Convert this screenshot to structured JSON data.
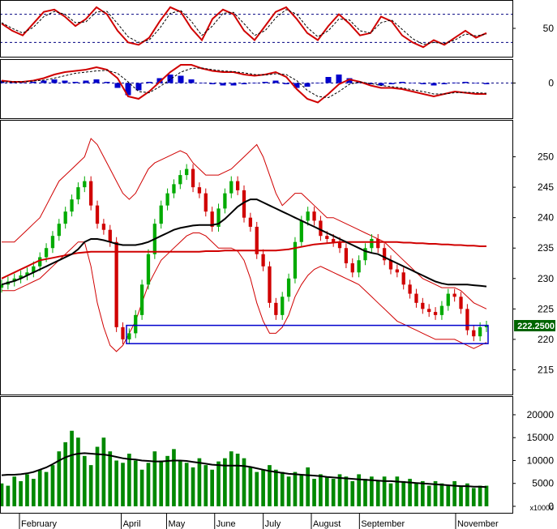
{
  "chart_data": [
    {
      "panel": "stochastic",
      "type": "line",
      "yticks": [
        50
      ],
      "ylim": [
        0,
        100
      ],
      "reference_levels": [
        80,
        20
      ],
      "series": [
        {
          "color": "#d00000",
          "values": [
            60,
            45,
            35,
            60,
            85,
            90,
            75,
            55,
            70,
            95,
            80,
            45,
            20,
            15,
            30,
            65,
            95,
            85,
            50,
            25,
            70,
            90,
            80,
            45,
            25,
            55,
            85,
            95,
            70,
            40,
            25,
            55,
            80,
            60,
            35,
            40,
            75,
            65,
            35,
            20,
            10,
            25,
            15,
            30,
            45,
            30,
            40
          ]
        },
        {
          "color": "#000000",
          "values": [
            62,
            50,
            40,
            52,
            75,
            86,
            80,
            62,
            64,
            85,
            86,
            60,
            32,
            20,
            25,
            50,
            82,
            88,
            65,
            35,
            55,
            82,
            84,
            60,
            35,
            45,
            72,
            90,
            80,
            52,
            32,
            45,
            70,
            68,
            45,
            40,
            62,
            68,
            48,
            28,
            16,
            20,
            18,
            25,
            38,
            34,
            38
          ]
        }
      ]
    },
    {
      "panel": "macd",
      "type": "line",
      "yticks": [
        0
      ],
      "ylim": [
        -1,
        1
      ],
      "histogram_color": "#0000cc",
      "histogram": [
        0.1,
        0.05,
        0,
        0.05,
        0.1,
        0.15,
        0.1,
        0.05,
        0.1,
        0.15,
        0.05,
        -0.2,
        -0.5,
        -0.3,
        0.05,
        0.2,
        0.35,
        0.3,
        0.15,
        0,
        -0.05,
        -0.1,
        -0.1,
        -0.05,
        0,
        0.05,
        0.1,
        -0.05,
        -0.2,
        -0.15,
        0,
        0.25,
        0.35,
        0.2,
        0.05,
        -0.05,
        -0.1,
        -0.05,
        0.05,
        0,
        -0.05,
        -0.1,
        -0.05,
        0.02,
        0.05,
        -0.02,
        -0.05
      ],
      "series": [
        {
          "color": "#d00000",
          "values": [
            0.1,
            0.05,
            0.05,
            0.1,
            0.2,
            0.35,
            0.45,
            0.5,
            0.55,
            0.65,
            0.55,
            0.2,
            -0.55,
            -0.65,
            -0.35,
            0.05,
            0.45,
            0.75,
            0.75,
            0.6,
            0.5,
            0.45,
            0.45,
            0.35,
            0.3,
            0.35,
            0.45,
            0.25,
            -0.25,
            -0.65,
            -0.8,
            -0.45,
            -0.05,
            0.15,
            0.05,
            -0.1,
            -0.2,
            -0.2,
            -0.25,
            -0.35,
            -0.45,
            -0.55,
            -0.45,
            -0.35,
            -0.4,
            -0.45,
            -0.45
          ]
        },
        {
          "color": "#000000",
          "values": [
            0.05,
            0.05,
            0.05,
            0.08,
            0.12,
            0.2,
            0.3,
            0.4,
            0.45,
            0.5,
            0.52,
            0.4,
            0.05,
            -0.35,
            -0.4,
            -0.15,
            0.15,
            0.45,
            0.6,
            0.62,
            0.55,
            0.5,
            0.47,
            0.42,
            0.35,
            0.33,
            0.38,
            0.35,
            0.1,
            -0.3,
            -0.55,
            -0.6,
            -0.35,
            -0.05,
            0.05,
            -0.02,
            -0.1,
            -0.15,
            -0.2,
            -0.28,
            -0.35,
            -0.45,
            -0.45,
            -0.4,
            -0.38,
            -0.4,
            -0.42
          ]
        }
      ]
    },
    {
      "panel": "price",
      "type": "candlestick",
      "yticks": [
        215,
        220,
        225,
        230,
        235,
        240,
        245,
        250
      ],
      "ylim": [
        212,
        255
      ],
      "last_price": "222.2500",
      "up_color": "#00aa00",
      "down_color": "#d00000",
      "close": [
        229,
        229.5,
        230,
        230.5,
        231,
        232,
        233.5,
        235,
        237,
        239,
        241,
        243,
        245,
        246,
        242,
        239,
        238,
        236,
        222,
        220,
        221,
        224,
        229,
        234,
        239,
        242,
        244,
        245.5,
        247,
        248,
        245,
        244,
        241,
        238.5,
        241.5,
        244,
        246,
        244.5,
        240,
        238.5,
        234,
        232,
        226,
        224,
        227,
        230,
        236,
        239.5,
        241,
        239.5,
        237,
        236.5,
        236,
        235,
        232.5,
        231,
        233,
        235,
        236.5,
        235,
        233,
        231.5,
        231,
        229,
        227.5,
        226,
        225,
        224.5,
        224,
        225.5,
        227.5,
        227,
        225,
        221.5,
        220.5,
        222,
        222.25
      ],
      "upper_band": [
        236,
        236,
        236,
        237,
        238,
        239,
        240,
        242,
        244,
        246,
        247,
        248,
        249,
        250,
        253,
        252,
        250,
        248,
        246,
        244,
        243,
        244,
        246,
        248,
        249,
        249.5,
        250,
        250.5,
        251,
        250.5,
        249,
        248,
        247,
        247,
        247,
        247.5,
        248,
        249,
        250,
        251,
        252,
        250,
        247,
        244,
        242,
        243,
        244,
        244,
        243,
        242,
        241,
        240,
        240,
        239.5,
        239,
        238.5,
        238,
        237.5,
        237,
        236.5,
        236,
        235,
        234,
        233,
        232,
        231,
        230,
        229.5,
        229,
        228.5,
        228.5,
        228.5,
        228,
        227,
        226,
        225.5,
        225
      ],
      "lower_band": [
        228,
        228,
        228,
        228.5,
        229,
        229.5,
        230,
        231,
        232,
        233,
        234,
        235,
        236,
        236,
        232,
        226,
        222,
        219,
        218,
        219,
        221,
        223,
        226,
        229,
        231,
        233,
        234,
        235,
        236,
        237,
        237.5,
        237.5,
        237,
        236,
        235,
        235,
        235,
        234.5,
        233,
        230,
        226,
        223,
        221,
        221,
        222,
        224,
        227,
        229,
        230.5,
        231.5,
        232,
        231.5,
        231,
        230.5,
        230,
        229.5,
        229,
        228,
        227,
        226,
        225,
        224,
        223,
        222.5,
        222,
        221.5,
        221,
        220.5,
        220,
        220,
        220,
        220,
        219.5,
        219,
        218.5,
        219,
        219.5
      ],
      "sma_long": [
        230,
        230.5,
        231,
        231.5,
        232,
        232.5,
        233,
        233.2,
        233.4,
        233.6,
        233.8,
        234,
        234.2,
        234.3,
        234.4,
        234.4,
        234.4,
        234.4,
        234.4,
        234.4,
        234.4,
        234.4,
        234.4,
        234.4,
        234.4,
        234.4,
        234.4,
        234.4,
        234.4,
        234.4,
        234.4,
        234.4,
        234.5,
        234.5,
        234.5,
        234.6,
        234.6,
        234.6,
        234.6,
        234.6,
        234.6,
        234.6,
        234.6,
        234.6,
        234.7,
        234.8,
        235,
        235.2,
        235.4,
        235.6,
        235.7,
        235.8,
        235.9,
        236,
        236,
        236,
        236,
        236,
        236,
        236,
        236,
        236,
        236,
        235.9,
        235.9,
        235.8,
        235.8,
        235.7,
        235.7,
        235.6,
        235.6,
        235.5,
        235.5,
        235.4,
        235.4,
        235.3,
        235.3
      ],
      "sma_mid": [
        229,
        229.3,
        229.6,
        230,
        230.5,
        231,
        231.5,
        232,
        232.5,
        233,
        233.5,
        234,
        234.8,
        236,
        236.5,
        236.5,
        236.3,
        236,
        235.7,
        235.5,
        235.5,
        235.5,
        235.7,
        236,
        236.5,
        237,
        237.5,
        238,
        238.3,
        238.5,
        238.7,
        238.8,
        238.8,
        238.8,
        239,
        239.8,
        240.8,
        241.8,
        242.5,
        243,
        243,
        242.5,
        242,
        241.5,
        241,
        240.5,
        240,
        239.5,
        239,
        238.5,
        238,
        237.5,
        237,
        236.5,
        236,
        235.5,
        235,
        234.5,
        234.2,
        234,
        233.5,
        233,
        232.5,
        232,
        231.5,
        231,
        230.5,
        230,
        229.5,
        229.2,
        229,
        229,
        229,
        229,
        228.9,
        228.8,
        228.7
      ]
    },
    {
      "panel": "volume",
      "type": "bar",
      "yticks": [
        0,
        5000,
        10000,
        15000,
        20000
      ],
      "ylim": [
        0,
        23000
      ],
      "unit_label": "x10000",
      "bar_color": "#008800",
      "values": [
        5000,
        4500,
        6500,
        5500,
        7000,
        6000,
        8000,
        7500,
        9000,
        12000,
        14000,
        16500,
        15000,
        11000,
        9000,
        13000,
        15000,
        12000,
        10000,
        9500,
        11500,
        10000,
        8000,
        9500,
        12000,
        10000,
        11000,
        12500,
        10000,
        9500,
        8500,
        10500,
        9000,
        8000,
        9800,
        10500,
        12000,
        11500,
        10500,
        8500,
        7500,
        8000,
        9000,
        8000,
        7500,
        6500,
        7500,
        7000,
        8500,
        6000,
        7000,
        6500,
        6000,
        7000,
        6500,
        5500,
        7000,
        6000,
        6500,
        5500,
        6500,
        5000,
        6500,
        5500,
        6000,
        5000,
        5500,
        4500,
        5500,
        5000,
        4500,
        5500,
        4500,
        5000,
        4000,
        4500,
        4500
      ],
      "ma": [
        6800,
        6900,
        6900,
        7000,
        7200,
        7500,
        8000,
        8500,
        9200,
        10000,
        10700,
        11200,
        11500,
        11600,
        11500,
        11400,
        11300,
        11100,
        10800,
        10500,
        10300,
        10200,
        10000,
        9900,
        9800,
        9800,
        9900,
        10000,
        10000,
        9900,
        9700,
        9500,
        9300,
        9100,
        9000,
        8900,
        8900,
        8900,
        8800,
        8600,
        8300,
        8000,
        7700,
        7500,
        7300,
        7100,
        7000,
        6900,
        6800,
        6700,
        6600,
        6400,
        6300,
        6200,
        6100,
        6000,
        5900,
        5800,
        5700,
        5600,
        5500,
        5500,
        5400,
        5300,
        5200,
        5100,
        5000,
        4900,
        4800,
        4700,
        4600,
        4500,
        4400,
        4400,
        4300,
        4300,
        4200
      ]
    }
  ],
  "x_axis": {
    "month_labels": [
      "February",
      "April",
      "May",
      "June",
      "July",
      "August",
      "September",
      "November"
    ],
    "month_fracs": [
      0.0,
      0.218,
      0.315,
      0.418,
      0.522,
      0.625,
      0.728,
      0.934
    ]
  },
  "support_zone": {
    "color": "#0000cc",
    "y_low": 219.3,
    "y_high": 222.3
  },
  "colors": {
    "band": "#d00000",
    "sma_long": "#d00000",
    "sma_mid": "#000000",
    "ref_line": "#000080",
    "price_tag_bg": "#006400"
  }
}
